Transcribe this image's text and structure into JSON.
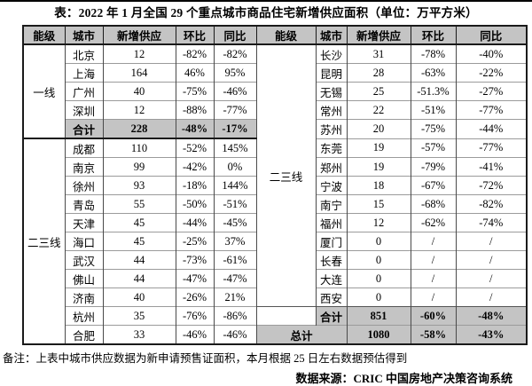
{
  "title": "表：2022 年 1 月全国 29 个重点城市商品住宅新增供应面积（单位：万平方米）",
  "table": {
    "headers": [
      "能级",
      "城市",
      "新增供应",
      "环比",
      "同比",
      "能级",
      "城市",
      "新增供应",
      "环比",
      "同比"
    ],
    "left": {
      "tiers": [
        {
          "label": "一线",
          "span": 5
        },
        {
          "label": "二三线",
          "span": 11
        }
      ],
      "rows": [
        {
          "city": "北京",
          "supply": "12",
          "mom": "-82%",
          "yoy": "-82%",
          "total": false
        },
        {
          "city": "上海",
          "supply": "164",
          "mom": "46%",
          "yoy": "95%",
          "total": false
        },
        {
          "city": "广州",
          "supply": "40",
          "mom": "-75%",
          "yoy": "-46%",
          "total": false
        },
        {
          "city": "深圳",
          "supply": "12",
          "mom": "-88%",
          "yoy": "-77%",
          "total": false
        },
        {
          "city": "合计",
          "supply": "228",
          "mom": "-48%",
          "yoy": "-17%",
          "total": true
        },
        {
          "city": "成都",
          "supply": "110",
          "mom": "-52%",
          "yoy": "145%",
          "total": false
        },
        {
          "city": "南京",
          "supply": "99",
          "mom": "-42%",
          "yoy": "0%",
          "total": false
        },
        {
          "city": "徐州",
          "supply": "93",
          "mom": "-18%",
          "yoy": "144%",
          "total": false
        },
        {
          "city": "青岛",
          "supply": "55",
          "mom": "-50%",
          "yoy": "-51%",
          "total": false
        },
        {
          "city": "天津",
          "supply": "45",
          "mom": "-44%",
          "yoy": "-45%",
          "total": false
        },
        {
          "city": "海口",
          "supply": "45",
          "mom": "-25%",
          "yoy": "37%",
          "total": false
        },
        {
          "city": "武汉",
          "supply": "44",
          "mom": "-73%",
          "yoy": "-61%",
          "total": false
        },
        {
          "city": "佛山",
          "supply": "44",
          "mom": "-47%",
          "yoy": "-47%",
          "total": false
        },
        {
          "city": "济南",
          "supply": "40",
          "mom": "-26%",
          "yoy": "21%",
          "total": false
        },
        {
          "city": "杭州",
          "supply": "35",
          "mom": "-76%",
          "yoy": "-86%",
          "total": false
        },
        {
          "city": "合肥",
          "supply": "33",
          "mom": "-46%",
          "yoy": "-46%",
          "total": false
        }
      ]
    },
    "right": {
      "tier": {
        "label": "二三线",
        "span": 14
      },
      "rows": [
        {
          "city": "长沙",
          "supply": "31",
          "mom": "-78%",
          "yoy": "-40%"
        },
        {
          "city": "昆明",
          "supply": "28",
          "mom": "-63%",
          "yoy": "-22%"
        },
        {
          "city": "无锡",
          "supply": "25",
          "mom": "-51.3%",
          "yoy": "-27%"
        },
        {
          "city": "常州",
          "supply": "22",
          "mom": "-51%",
          "yoy": "-77%"
        },
        {
          "city": "苏州",
          "supply": "20",
          "mom": "-75%",
          "yoy": "-44%"
        },
        {
          "city": "东莞",
          "supply": "19",
          "mom": "-57%",
          "yoy": "-77%"
        },
        {
          "city": "郑州",
          "supply": "19",
          "mom": "-79%",
          "yoy": "-41%"
        },
        {
          "city": "宁波",
          "supply": "18",
          "mom": "-67%",
          "yoy": "-72%"
        },
        {
          "city": "南宁",
          "supply": "15",
          "mom": "-68%",
          "yoy": "-82%"
        },
        {
          "city": "福州",
          "supply": "12",
          "mom": "-62%",
          "yoy": "-74%"
        },
        {
          "city": "厦门",
          "supply": "0",
          "mom": "/",
          "yoy": "/"
        },
        {
          "city": "长春",
          "supply": "0",
          "mom": "/",
          "yoy": "/"
        },
        {
          "city": "大连",
          "supply": "0",
          "mom": "/",
          "yoy": "/"
        },
        {
          "city": "西安",
          "supply": "0",
          "mom": "/",
          "yoy": "/"
        }
      ],
      "subtotal": {
        "city": "合计",
        "supply": "851",
        "mom": "-60%",
        "yoy": "-48%"
      },
      "grand_total": {
        "label": "总计",
        "supply": "1080",
        "mom": "-58%",
        "yoy": "-43%"
      }
    }
  },
  "footer": {
    "note": "备注：上表中城市供应数据为新申请预售证面积，本月根据 25 日左右数据预估得到",
    "source": "数据来源：CRIC 中国房地产决策咨询系统"
  },
  "colors": {
    "header_bg": "#c4c4c4",
    "total_bg": "#c4c4c4",
    "border_dark": "#1a1a1a",
    "row_line": "#9b9b9b"
  }
}
